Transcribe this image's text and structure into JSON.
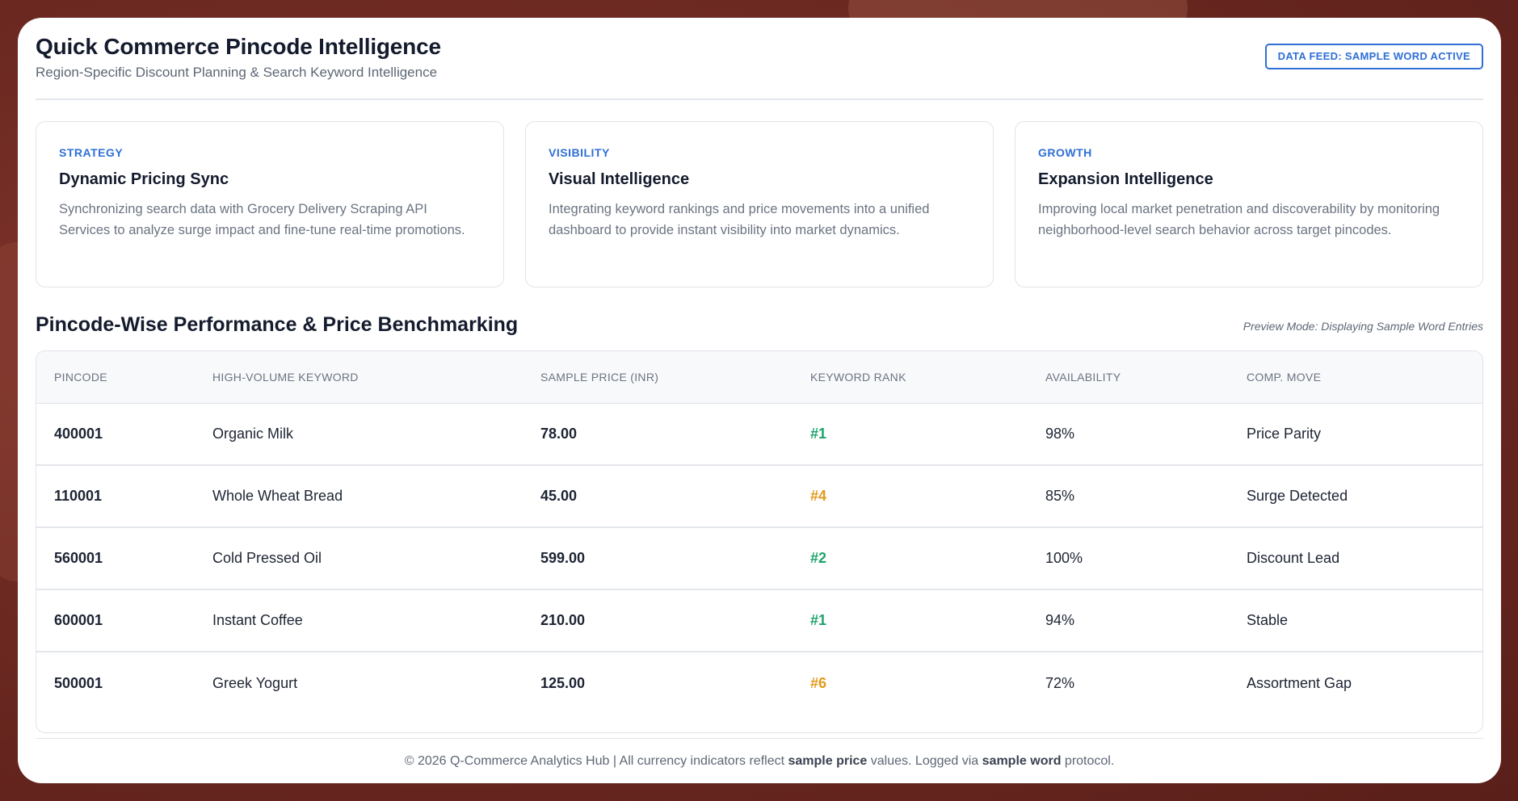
{
  "header": {
    "title": "Quick Commerce Pincode Intelligence",
    "subtitle": "Region-Specific Discount Planning & Search Keyword Intelligence",
    "badge": "DATA FEED: SAMPLE WORD ACTIVE"
  },
  "cards": [
    {
      "tag": "STRATEGY",
      "title": "Dynamic Pricing Sync",
      "description": "Synchronizing search data with Grocery Delivery Scraping API Services to analyze surge impact and fine-tune real-time promotions."
    },
    {
      "tag": "VISIBILITY",
      "title": "Visual Intelligence",
      "description": "Integrating keyword rankings and price movements into a unified dashboard to provide instant visibility into market dynamics."
    },
    {
      "tag": "GROWTH",
      "title": "Expansion Intelligence",
      "description": "Improving local market penetration and discoverability by monitoring neighborhood-level search behavior across target pincodes."
    }
  ],
  "section": {
    "title": "Pincode-Wise Performance & Price Benchmarking",
    "preview_note": "Preview Mode: Displaying Sample Word Entries"
  },
  "table": {
    "headers": [
      "PINCODE",
      "HIGH-VOLUME KEYWORD",
      "SAMPLE PRICE (INR)",
      "KEYWORD RANK",
      "AVAILABILITY",
      "COMP. MOVE"
    ],
    "rows": [
      {
        "pincode": "400001",
        "keyword": "Organic Milk",
        "price": "78.00",
        "rank": "#1",
        "availability": "98%",
        "move": "Price Parity"
      },
      {
        "pincode": "110001",
        "keyword": "Whole Wheat Bread",
        "price": "45.00",
        "rank": "#4",
        "availability": "85%",
        "move": "Surge Detected"
      },
      {
        "pincode": "560001",
        "keyword": "Cold Pressed Oil",
        "price": "599.00",
        "rank": "#2",
        "availability": "100%",
        "move": "Discount Lead"
      },
      {
        "pincode": "600001",
        "keyword": "Instant Coffee",
        "price": "210.00",
        "rank": "#1",
        "availability": "94%",
        "move": "Stable"
      },
      {
        "pincode": "500001",
        "keyword": "Greek Yogurt",
        "price": "125.00",
        "rank": "#6",
        "availability": "72%",
        "move": "Assortment Gap"
      }
    ]
  },
  "footer": {
    "part1": "© 2026 Q-Commerce Analytics Hub | All currency indicators reflect ",
    "bold1": "sample price",
    "part2": " values. Logged via ",
    "bold2": "sample word",
    "part3": " protocol."
  },
  "colors": {
    "accent": "#2f6fd6",
    "rank_good": "#1ea36a",
    "rank_warn": "#e29a1b"
  }
}
